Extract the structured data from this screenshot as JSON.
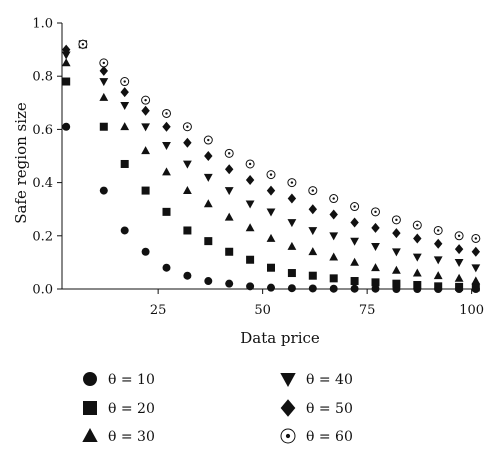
{
  "chart_data": {
    "type": "scatter",
    "xlabel": "Data price",
    "ylabel": "Safe region size",
    "xlim": [
      2,
      102
    ],
    "ylim": [
      0,
      1.0
    ],
    "xticks": [
      25,
      50,
      75,
      100
    ],
    "yticks": [
      0.0,
      0.2,
      0.4,
      0.6,
      0.8,
      1.0
    ],
    "grid": false,
    "legend_position": "bottom",
    "x": [
      3,
      7,
      12,
      17,
      22,
      27,
      32,
      37,
      42,
      47,
      52,
      57,
      62,
      67,
      72,
      77,
      82,
      87,
      92,
      97,
      101
    ],
    "series": [
      {
        "name": "θ = 10",
        "marker": "circle-filled",
        "values": [
          0.61,
          0.92,
          0.37,
          0.22,
          0.14,
          0.08,
          0.05,
          0.03,
          0.02,
          0.01,
          0.005,
          0.003,
          0.002,
          0.001,
          0.001,
          0.001,
          0.0,
          0.0,
          0.0,
          0.0,
          0.0
        ]
      },
      {
        "name": "θ = 20",
        "marker": "square-filled",
        "values": [
          0.78,
          0.92,
          0.61,
          0.47,
          0.37,
          0.29,
          0.22,
          0.18,
          0.14,
          0.11,
          0.08,
          0.06,
          0.05,
          0.04,
          0.03,
          0.025,
          0.02,
          0.015,
          0.01,
          0.008,
          0.006
        ]
      },
      {
        "name": "θ = 30",
        "marker": "triangle-up-filled",
        "values": [
          0.85,
          0.92,
          0.72,
          0.61,
          0.52,
          0.44,
          0.37,
          0.32,
          0.27,
          0.23,
          0.19,
          0.16,
          0.14,
          0.12,
          0.1,
          0.08,
          0.07,
          0.06,
          0.05,
          0.04,
          0.03
        ]
      },
      {
        "name": "θ = 40",
        "marker": "triangle-down-filled",
        "values": [
          0.88,
          0.92,
          0.78,
          0.69,
          0.61,
          0.54,
          0.47,
          0.42,
          0.37,
          0.32,
          0.29,
          0.25,
          0.22,
          0.2,
          0.18,
          0.16,
          0.14,
          0.12,
          0.11,
          0.1,
          0.08
        ]
      },
      {
        "name": "θ = 50",
        "marker": "diamond-filled",
        "values": [
          0.9,
          0.92,
          0.82,
          0.74,
          0.67,
          0.61,
          0.55,
          0.5,
          0.45,
          0.41,
          0.37,
          0.34,
          0.3,
          0.28,
          0.25,
          0.23,
          0.21,
          0.19,
          0.17,
          0.15,
          0.14
        ]
      },
      {
        "name": "θ = 60",
        "marker": "circle-open",
        "values": [
          null,
          0.92,
          0.85,
          0.78,
          0.71,
          0.66,
          0.61,
          0.56,
          0.51,
          0.47,
          0.43,
          0.4,
          0.37,
          0.34,
          0.31,
          0.29,
          0.26,
          0.24,
          0.22,
          0.2,
          0.19
        ]
      }
    ]
  }
}
